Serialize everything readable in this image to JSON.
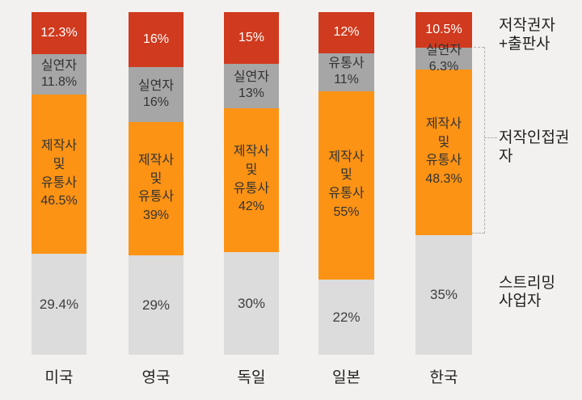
{
  "colors": {
    "background": "#f3f1ef",
    "copyright": "#d03a1e",
    "performer": "#a6a6a6",
    "producer": "#fc9314",
    "streaming": "#dcdcdc",
    "dashed_line": "#b3b0ad",
    "text_dark": "#333333",
    "text_on_red": "#ffffff"
  },
  "chart_data": {
    "type": "bar",
    "stacked": true,
    "orientation": "vertical",
    "unit": "%",
    "title": "",
    "xlabel": "",
    "ylabel": "",
    "ylim": [
      0,
      100
    ],
    "grid": false,
    "legend_position": "right-annotations",
    "categories": [
      "미국",
      "영국",
      "독일",
      "일본",
      "한국"
    ],
    "series": [
      {
        "key": "copyright",
        "name": "저작권자+출판사",
        "color_key": "copyright",
        "values": [
          12.3,
          16,
          15,
          12,
          10.5
        ],
        "labels": [
          "12.3%",
          "16%",
          "15%",
          "12%",
          "10.5%"
        ]
      },
      {
        "key": "performer",
        "name": "실연자/유통사",
        "color_key": "performer",
        "values": [
          11.8,
          16,
          13,
          11,
          6.3
        ],
        "labels": [
          "실연자\n11.8%",
          "실연자\n16%",
          "실연자\n13%",
          "유통사\n11%",
          "실연자\n6.3%"
        ]
      },
      {
        "key": "producer",
        "name": "제작사 및 유통사",
        "color_key": "producer",
        "values": [
          46.5,
          39,
          42,
          55,
          48.3
        ],
        "labels": [
          "제작사\n및\n유통사\n46.5%",
          "제작사\n및\n유통사\n39%",
          "제작사\n및\n유통사\n42%",
          "제작사\n및\n유통사\n55%",
          "제작사\n및\n유통사\n48.3%"
        ]
      },
      {
        "key": "streaming",
        "name": "스트리밍 사업자",
        "color_key": "streaming",
        "values": [
          29.4,
          29,
          30,
          22,
          35
        ],
        "labels": [
          "29.4%",
          "29%",
          "30%",
          "22%",
          "35%"
        ]
      }
    ]
  },
  "annotations": {
    "right_top": "저작권자\n+출판사",
    "right_middle": "저작인접권자",
    "right_bottom": "스트리밍\n사업자"
  }
}
